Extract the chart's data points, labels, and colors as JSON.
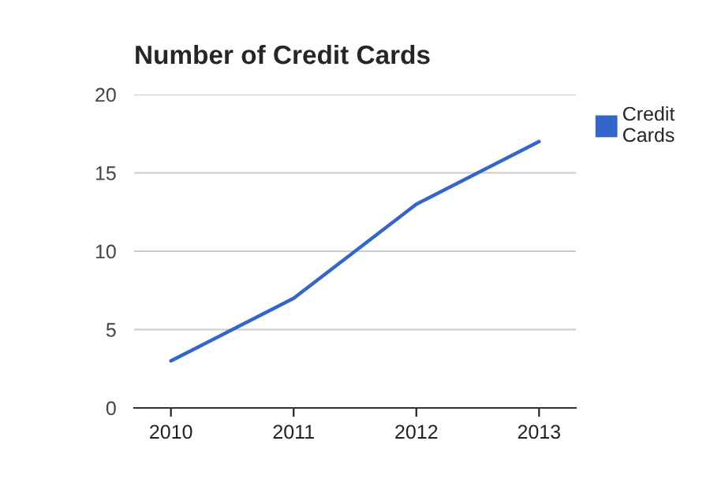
{
  "chart_data": {
    "type": "line",
    "title": "Number of Credit Cards",
    "categories": [
      "2010",
      "2011",
      "2012",
      "2013"
    ],
    "series": [
      {
        "name": "Credit Cards",
        "color": "#3366cc",
        "values": [
          3,
          7,
          13,
          17
        ]
      }
    ],
    "ylim": [
      0,
      20
    ],
    "yticks": [
      0,
      5,
      10,
      15,
      20
    ],
    "grid": "y",
    "legend": "right",
    "marker": "none",
    "line_style": "solid"
  }
}
